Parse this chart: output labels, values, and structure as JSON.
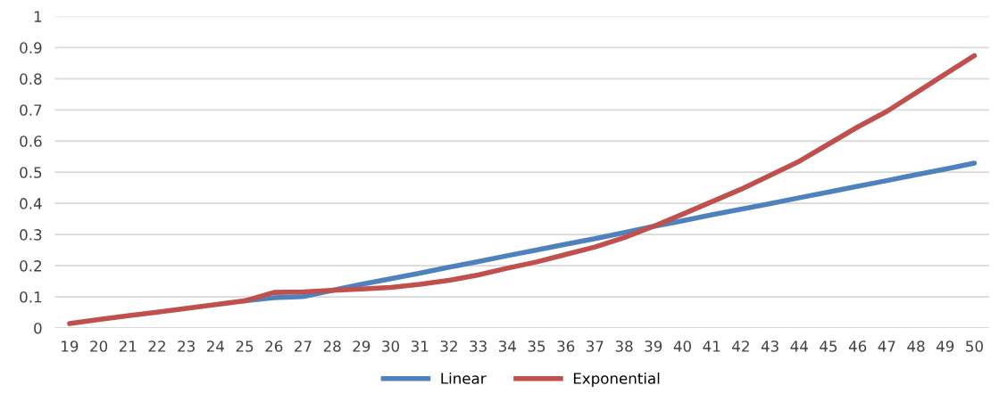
{
  "chart_data": {
    "type": "line",
    "categories": [
      "19",
      "20",
      "21",
      "22",
      "23",
      "24",
      "25",
      "26",
      "27",
      "28",
      "29",
      "30",
      "31",
      "32",
      "33",
      "34",
      "35",
      "36",
      "37",
      "38",
      "39",
      "40",
      "41",
      "42",
      "43",
      "44",
      "45",
      "46",
      "47",
      "48",
      "49",
      "50"
    ],
    "series": [
      {
        "name": "Linear",
        "color": "#4f81bd",
        "values": [
          null,
          null,
          null,
          null,
          null,
          null,
          0.087,
          0.097,
          0.101,
          0.121,
          0.14,
          0.158,
          0.176,
          0.195,
          0.213,
          0.232,
          0.25,
          0.269,
          0.287,
          0.306,
          0.326,
          0.344,
          0.363,
          0.381,
          0.399,
          0.418,
          0.436,
          0.455,
          0.473,
          0.492,
          0.51,
          0.529
        ]
      },
      {
        "name": "Exponential",
        "color": "#c0504d",
        "values": [
          0.014,
          0.027,
          0.039,
          0.051,
          0.063,
          0.075,
          0.087,
          0.114,
          0.116,
          0.121,
          0.125,
          0.13,
          0.14,
          0.153,
          0.17,
          0.192,
          0.212,
          0.236,
          0.26,
          0.29,
          0.326,
          0.365,
          0.405,
          0.445,
          0.49,
          0.535,
          0.59,
          0.645,
          0.695,
          0.755,
          0.815,
          0.874
        ]
      }
    ],
    "ylim": [
      0,
      1
    ],
    "yticks": [
      0,
      0.1,
      0.2,
      0.3,
      0.4,
      0.5,
      0.6,
      0.7,
      0.8,
      0.9,
      1
    ],
    "grid": "y",
    "legend": "bottom",
    "marker": "none",
    "line_style": "solid"
  }
}
